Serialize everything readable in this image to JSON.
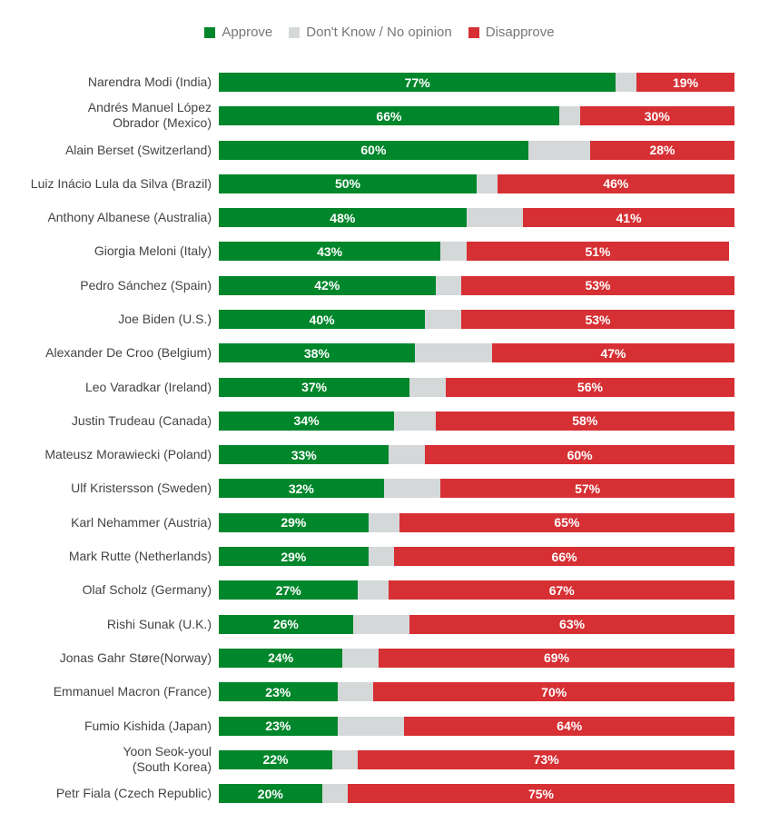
{
  "chart_data": {
    "type": "bar",
    "orientation": "horizontal",
    "stacked": true,
    "legend_position": "top",
    "xlim": [
      0,
      100
    ],
    "grid": false,
    "colors": {
      "Approve": "#00862b",
      "Don't Know / No opinion": "#d5d8d9",
      "Disapprove": "#d63034"
    },
    "legend": [
      "Approve",
      "Don't Know / No opinion",
      "Disapprove"
    ],
    "categories": [
      "Narendra Modi (India)",
      "Andrés Manuel López Obrador (Mexico)",
      "Alain Berset (Switzerland)",
      "Luiz Inácio Lula da Silva (Brazil)",
      "Anthony Albanese (Australia)",
      "Giorgia Meloni (Italy)",
      "Pedro Sánchez (Spain)",
      "Joe Biden (U.S.)",
      "Alexander De Croo (Belgium)",
      "Leo Varadkar (Ireland)",
      "Justin Trudeau (Canada)",
      "Mateusz Morawiecki (Poland)",
      "Ulf Kristersson (Sweden)",
      "Karl Nehammer (Austria)",
      "Mark Rutte (Netherlands)",
      "Olaf Scholz (Germany)",
      "Rishi Sunak (U.K.)",
      "Jonas Gahr Støre(Norway)",
      "Emmanuel Macron (France)",
      "Fumio Kishida (Japan)",
      "Yoon Seok-youl (South Korea)",
      "Petr Fiala (Czech Republic)"
    ],
    "series": [
      {
        "name": "Approve",
        "values": [
          77,
          66,
          60,
          50,
          48,
          43,
          42,
          40,
          38,
          37,
          34,
          33,
          32,
          29,
          29,
          27,
          26,
          24,
          23,
          23,
          22,
          20
        ]
      },
      {
        "name": "Don't Know / No opinion",
        "values": [
          4,
          4,
          12,
          4,
          11,
          5,
          5,
          7,
          15,
          7,
          8,
          7,
          11,
          6,
          5,
          6,
          11,
          7,
          7,
          13,
          5,
          5
        ]
      },
      {
        "name": "Disapprove",
        "values": [
          19,
          30,
          28,
          46,
          41,
          51,
          53,
          53,
          47,
          56,
          58,
          60,
          57,
          65,
          66,
          67,
          63,
          69,
          70,
          64,
          73,
          75
        ]
      }
    ]
  }
}
